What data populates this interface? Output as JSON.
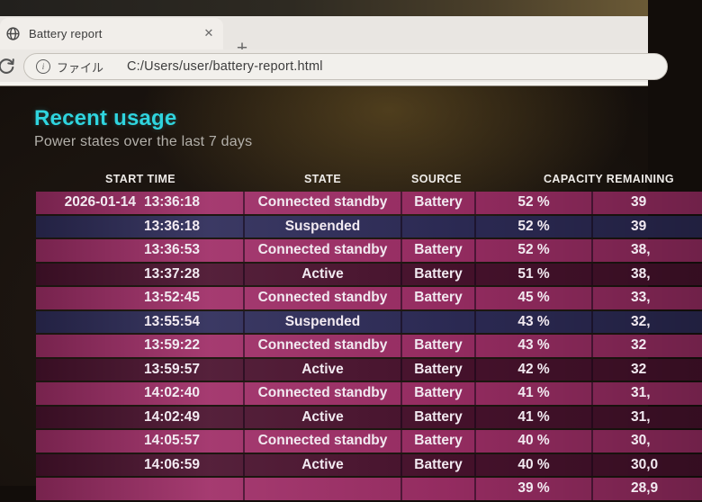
{
  "browser": {
    "tab": {
      "title": "Battery report"
    },
    "icons": {
      "close": "✕",
      "new_tab": "+",
      "info": "i"
    },
    "address_bar": {
      "file_label": "ファイル",
      "url": "C:/Users/user/battery-report.html"
    }
  },
  "page": {
    "title": "Recent usage",
    "subtitle": "Power states over the last 7 days",
    "accent_color": "#2fd4de"
  },
  "table": {
    "headers": {
      "start_time": "START TIME",
      "state": "STATE",
      "source": "SOURCE",
      "capacity": "CAPACITY REMAINING"
    },
    "row_colors": {
      "standby": "#a02f68",
      "suspended": "#2f2d5a",
      "active": "#4b132f"
    },
    "rows": [
      {
        "date": "2026-01-14",
        "time": "13:36:18",
        "state": "Connected standby",
        "source": "Battery",
        "percent": "52 %",
        "mwh": "39",
        "type": "standby"
      },
      {
        "date": "",
        "time": "13:36:18",
        "state": "Suspended",
        "source": "",
        "percent": "52 %",
        "mwh": "39",
        "type": "suspended"
      },
      {
        "date": "",
        "time": "13:36:53",
        "state": "Connected standby",
        "source": "Battery",
        "percent": "52 %",
        "mwh": "38,",
        "type": "standby"
      },
      {
        "date": "",
        "time": "13:37:28",
        "state": "Active",
        "source": "Battery",
        "percent": "51 %",
        "mwh": "38,",
        "type": "active"
      },
      {
        "date": "",
        "time": "13:52:45",
        "state": "Connected standby",
        "source": "Battery",
        "percent": "45 %",
        "mwh": "33,",
        "type": "standby"
      },
      {
        "date": "",
        "time": "13:55:54",
        "state": "Suspended",
        "source": "",
        "percent": "43 %",
        "mwh": "32,",
        "type": "suspended"
      },
      {
        "date": "",
        "time": "13:59:22",
        "state": "Connected standby",
        "source": "Battery",
        "percent": "43 %",
        "mwh": "32",
        "type": "standby"
      },
      {
        "date": "",
        "time": "13:59:57",
        "state": "Active",
        "source": "Battery",
        "percent": "42 %",
        "mwh": "32",
        "type": "active"
      },
      {
        "date": "",
        "time": "14:02:40",
        "state": "Connected standby",
        "source": "Battery",
        "percent": "41 %",
        "mwh": "31,",
        "type": "standby"
      },
      {
        "date": "",
        "time": "14:02:49",
        "state": "Active",
        "source": "Battery",
        "percent": "41 %",
        "mwh": "31,",
        "type": "active"
      },
      {
        "date": "",
        "time": "14:05:57",
        "state": "Connected standby",
        "source": "Battery",
        "percent": "40 %",
        "mwh": "30,",
        "type": "standby"
      },
      {
        "date": "",
        "time": "14:06:59",
        "state": "Active",
        "source": "Battery",
        "percent": "40 %",
        "mwh": "30,0",
        "type": "active"
      },
      {
        "date": "",
        "time": "",
        "state": "",
        "source": "",
        "percent": "39 %",
        "mwh": "28,9",
        "type": "standby",
        "partial": true
      }
    ]
  }
}
